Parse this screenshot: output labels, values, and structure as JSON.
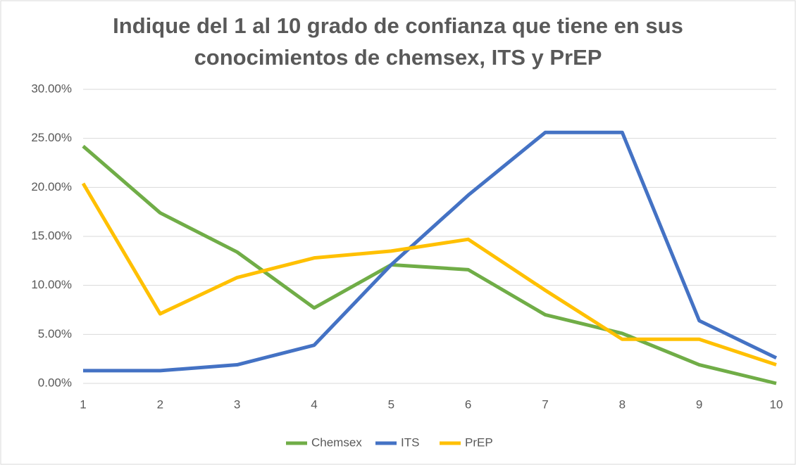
{
  "chart_data": {
    "type": "line",
    "title": "Indique del 1 al 10 grado de confianza que tiene en sus conocimientos de chemsex, ITS y PrEP",
    "categories": [
      "1",
      "2",
      "3",
      "4",
      "5",
      "6",
      "7",
      "8",
      "9",
      "10"
    ],
    "series": [
      {
        "name": "Chemsex",
        "color": "#70ad47",
        "values": [
          24.2,
          17.4,
          13.4,
          7.7,
          12.1,
          11.6,
          7.0,
          5.1,
          1.9,
          0
        ]
      },
      {
        "name": "ITS",
        "color": "#4472c4",
        "values": [
          1.3,
          1.3,
          1.9,
          3.9,
          12.1,
          19.2,
          25.6,
          25.6,
          6.4,
          2.6
        ]
      },
      {
        "name": "PrEP",
        "color": "#ffc000",
        "values": [
          20.4,
          7.1,
          10.8,
          12.8,
          13.5,
          14.7,
          9.5,
          4.5,
          4.5,
          1.9
        ]
      }
    ],
    "ylim": [
      0,
      30
    ],
    "yticks": [
      {
        "value": 0,
        "label": "0.00%"
      },
      {
        "value": 5,
        "label": "5.00%"
      },
      {
        "value": 10,
        "label": "10.00%"
      },
      {
        "value": 15,
        "label": "15.00%"
      },
      {
        "value": 20,
        "label": "20.00%"
      },
      {
        "value": 25,
        "label": "25.00%"
      },
      {
        "value": 30,
        "label": "30.00%"
      }
    ],
    "grid": true,
    "legend": "bottom"
  }
}
